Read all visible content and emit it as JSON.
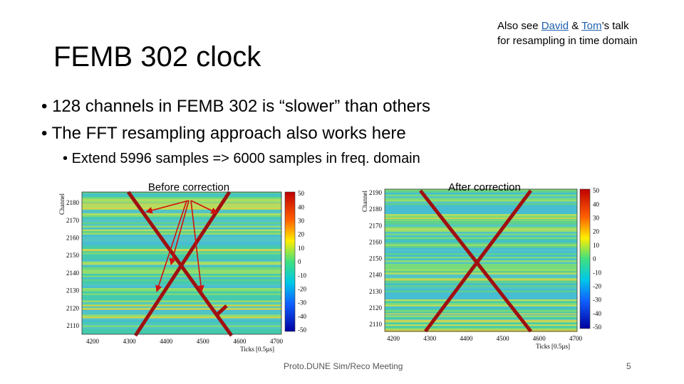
{
  "header": {
    "title": "FEMB 302 clock",
    "note": {
      "lead": "Also see",
      "link1": "David",
      "amp": "&",
      "link2": "Tom",
      "tail": "’s talk",
      "line2": "for resampling in time domain"
    }
  },
  "bullets": [
    "128 channels in FEMB 302 is “slower” than others",
    "The FFT resampling approach also works here"
  ],
  "sub_bullets": [
    "Extend 5996 samples => 6000 samples in freq. domain"
  ],
  "plots": [
    {
      "label": "Before correction",
      "y_title": "Channel",
      "x_title": "Ticks [0.5µs]",
      "yticks": [
        2180,
        2170,
        2160,
        2150,
        2140,
        2130,
        2120,
        2110
      ],
      "xticks": [
        4200,
        4300,
        4400,
        4500,
        4600,
        4700
      ],
      "cticks": [
        50,
        40,
        30,
        20,
        10,
        0,
        -10,
        -20,
        -30,
        -40,
        -50
      ]
    },
    {
      "label": "After correction",
      "y_title": "Channel",
      "x_title": "Ticks [0.5µs]",
      "yticks": [
        2190,
        2180,
        2170,
        2160,
        2150,
        2140,
        2130,
        2120,
        2110
      ],
      "xticks": [
        4200,
        4300,
        4400,
        4500,
        4600,
        4700
      ],
      "cticks": [
        50,
        40,
        30,
        20,
        10,
        0,
        -10,
        -20,
        -30,
        -40,
        -50
      ]
    }
  ],
  "footer": {
    "meeting": "Proto.DUNE Sim/Reco Meeting",
    "page": "5"
  }
}
